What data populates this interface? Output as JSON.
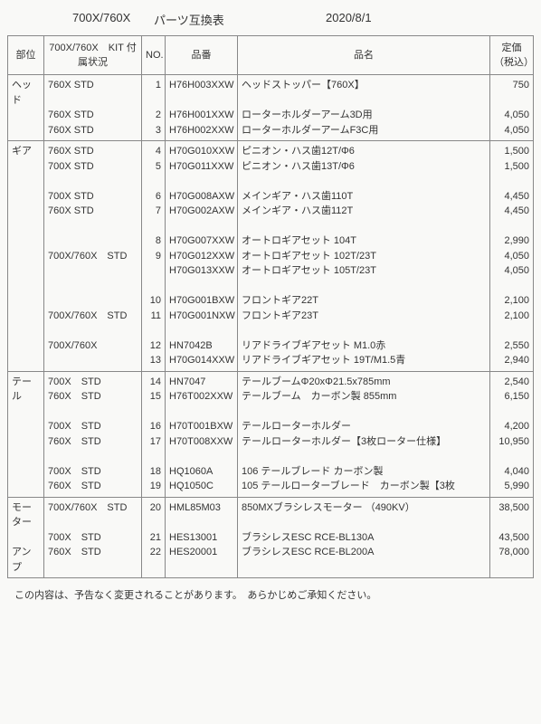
{
  "header": {
    "model": "700X/760X",
    "title": "パーツ互換表",
    "date": "2020/8/1"
  },
  "columns": {
    "bui": "部位",
    "kit": "700X/760X　KIT\n付属状況",
    "no": "NO.",
    "pn": "品番",
    "name": "品名",
    "price": "定価\n（税込）"
  },
  "sections": [
    {
      "bui": "ヘッド",
      "kit": "760X STD\n\n760X STD\n760X STD",
      "no": "1\n\n2\n3",
      "pn": "H76H003XXW\n\nH76H001XXW\nH76H002XXW",
      "name": "ヘッドストッパー【760X】\n\nローターホルダーアーム3D用\nローターホルダーアームF3C用",
      "price": "750\n\n4,050\n4,050"
    },
    {
      "bui": "ギア",
      "kit": "760X STD\n700X STD\n\n700X STD\n760X STD\n\n\n700X/760X　STD\n\n\n\n700X/760X　STD\n\n700X/760X\n",
      "no": "4\n5\n\n6\n7\n\n8\n9\n\n\n10\n11\n\n12\n13",
      "pn": "H70G010XXW\nH70G011XXW\n\nH70G008AXW\nH70G002AXW\n\nH70G007XXW\nH70G012XXW\nH70G013XXW\n\nH70G001BXW\nH70G001NXW\n\nHN7042B\nH70G014XXW",
      "name": "ピニオン・ハス歯12T/Φ6\nピニオン・ハス歯13T/Φ6\n\nメインギア・ハス歯110T\nメインギア・ハス歯112T\n\nオートロギアセット 104T\nオートロギアセット 102T/23T\nオートロギアセット 105T/23T\n\nフロントギア22T\nフロントギア23T\n\nリアドライブギアセット M1.0赤\nリアドライブギアセット 19T/M1.5青",
      "price": "1,500\n1,500\n\n4,450\n4,450\n\n2,990\n4,050\n4,050\n\n2,100\n2,100\n\n2,550\n2,940"
    },
    {
      "bui": "テール",
      "kit": "700X　STD\n760X　STD\n\n700X　STD\n760X　STD\n\n700X　STD\n760X　STD",
      "no": "14\n15\n\n16\n17\n\n18\n19",
      "pn": "HN7047\nH76T002XXW\n\nH70T001BXW\nH70T008XXW\n\nHQ1060A\nHQ1050C",
      "name": "テールブームΦ20xΦ21.5x785mm\nテールブーム　カーボン製 855mm\n\nテールローターホルダー\nテールローターホルダー【3枚ローター仕様】\n\n106 テールブレード カーボン製\n105 テールローターブレード　カーボン製【3枚",
      "price": "2,540\n6,150\n\n4,200\n10,950\n\n4,040\n5,990"
    },
    {
      "bui": "モーター\n\nアンプ",
      "kit": "700X/760X　STD\n\n700X　STD\n760X　STD",
      "no": "20\n\n21\n22",
      "pn": "HML85M03\n\nHES13001\nHES20001",
      "name": "850MXブラシレスモーター （490KV）\n\nブラシレスESC RCE-BL130A\nブラシレスESC RCE-BL200A",
      "price": "38,500\n\n43,500\n78,000"
    }
  ],
  "footer": "この内容は、予告なく変更されることがあります。　あらかじめご承知ください。"
}
